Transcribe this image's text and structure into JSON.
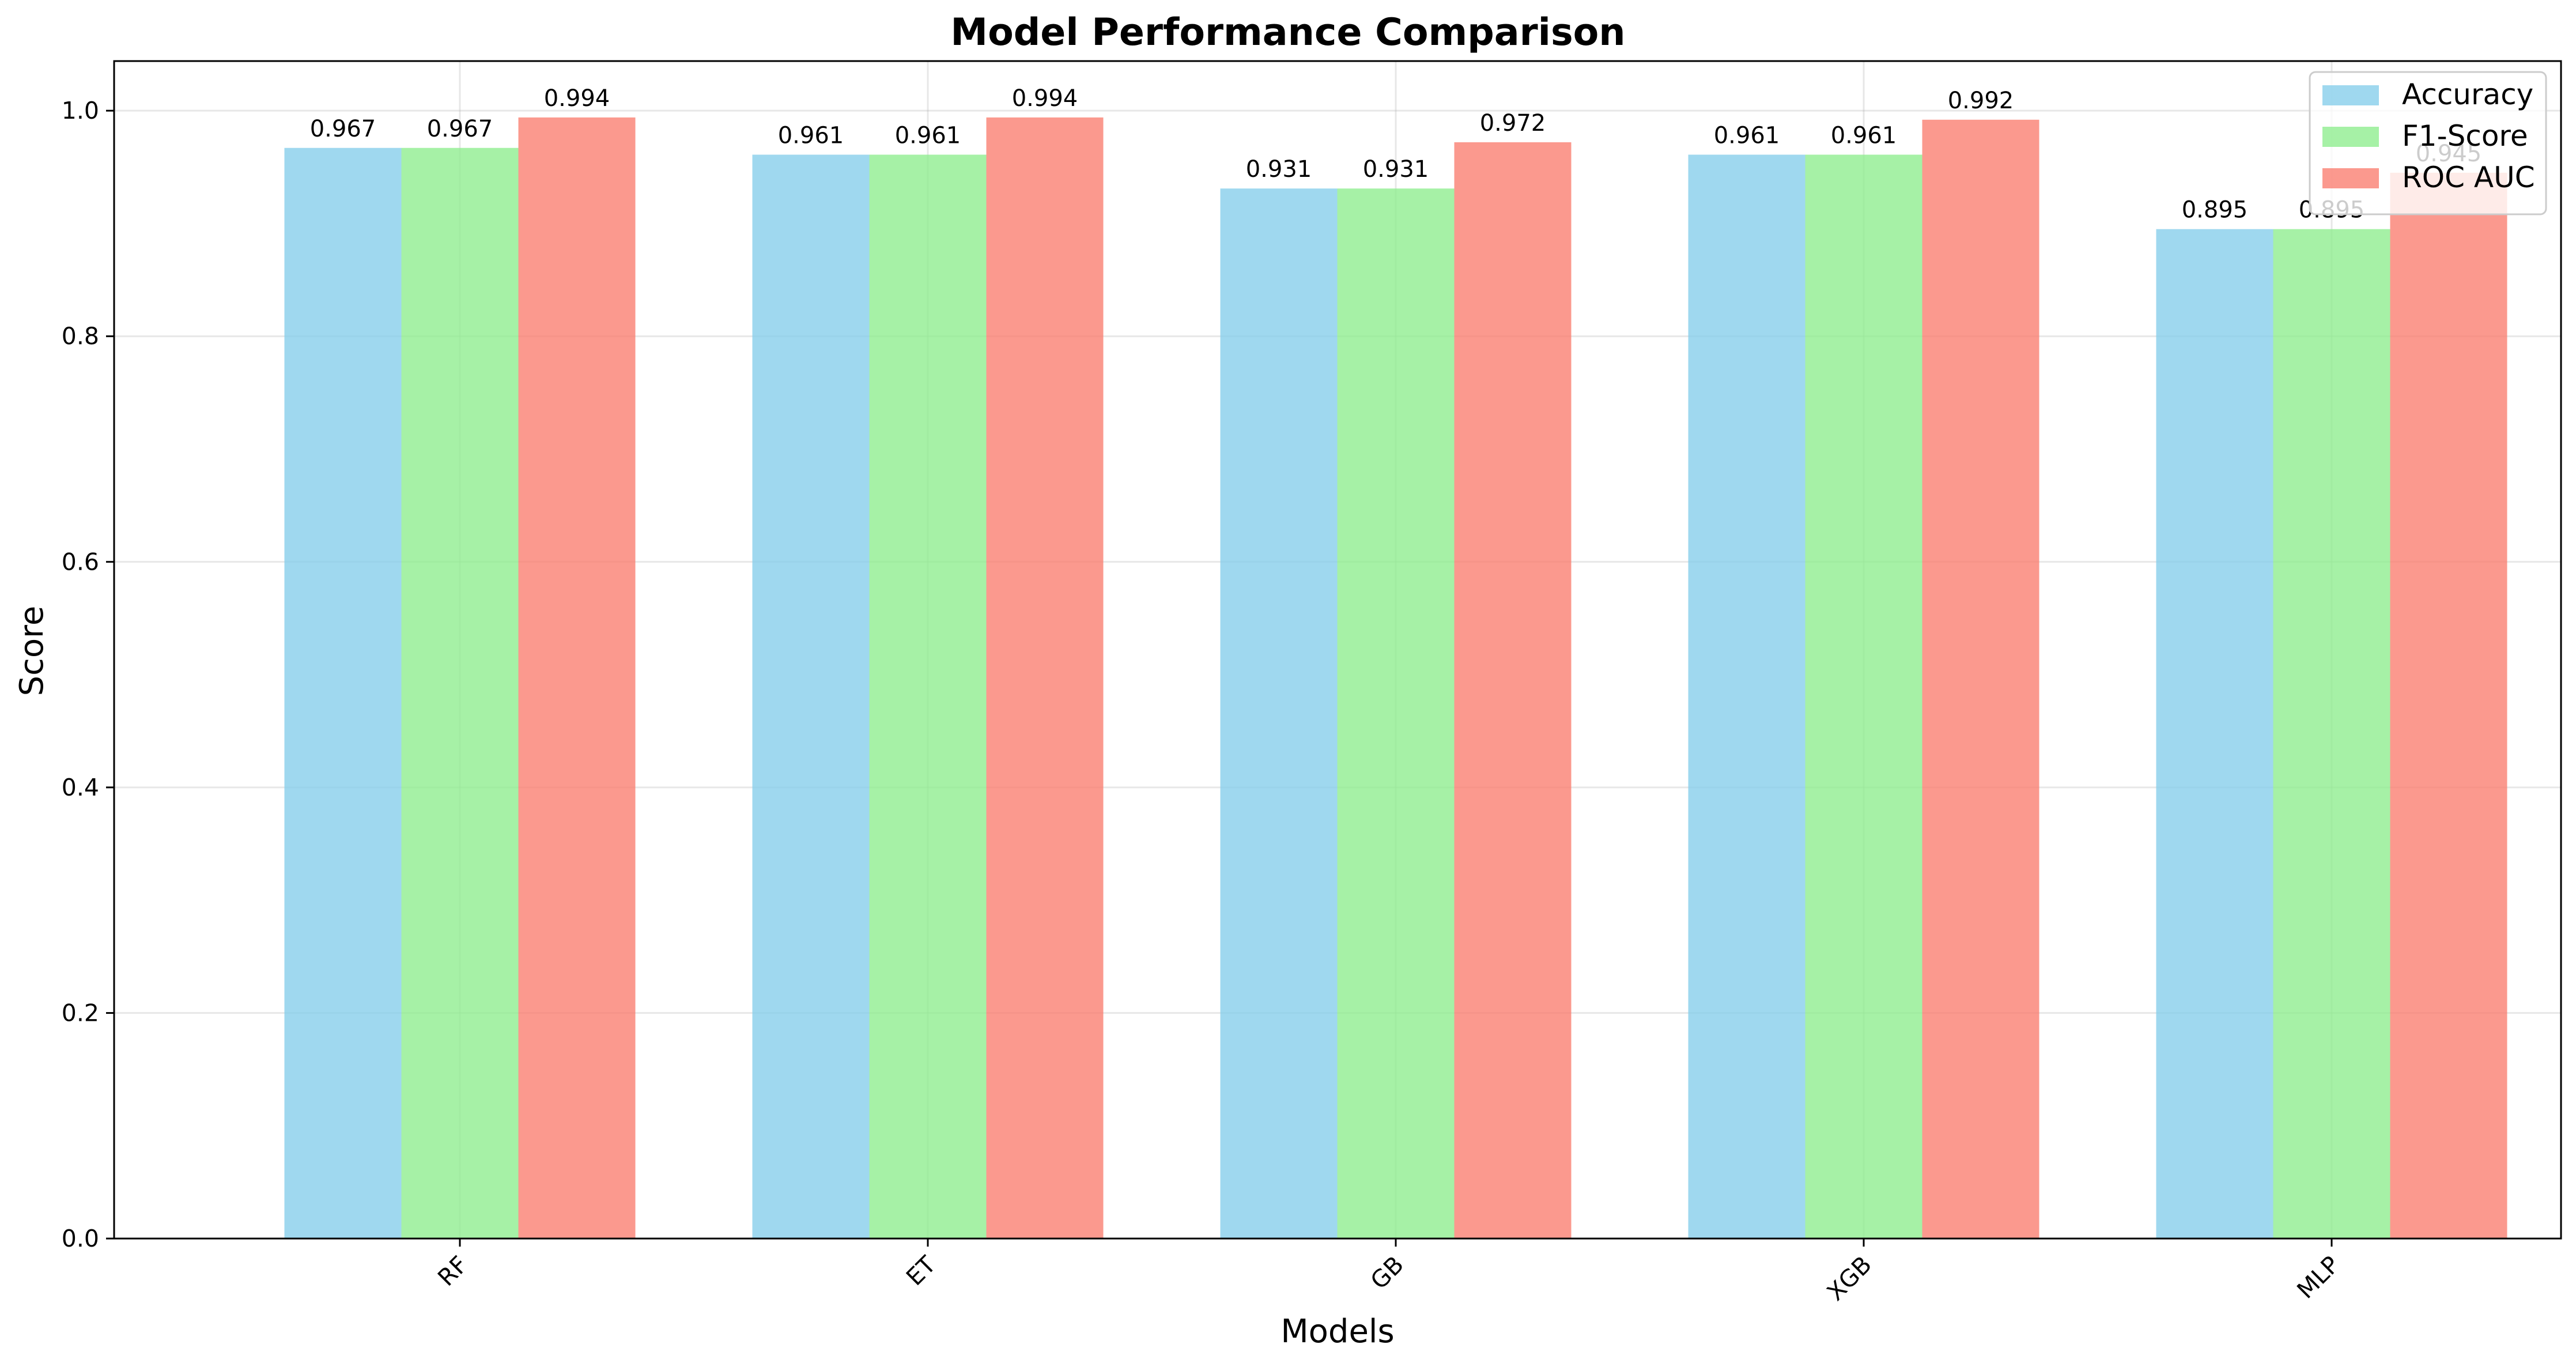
{
  "chart_data": {
    "type": "bar",
    "title": "Model Performance Comparison",
    "xlabel": "Models",
    "ylabel": "Score",
    "categories": [
      "RF",
      "ET",
      "GB",
      "XGB",
      "MLP"
    ],
    "series": [
      {
        "name": "Accuracy",
        "color": "#87CEEB",
        "values": [
          0.967,
          0.961,
          0.931,
          0.961,
          0.895
        ],
        "labels": [
          "0.967",
          "0.961",
          "0.931",
          "0.961",
          "0.895"
        ]
      },
      {
        "name": "F1-Score",
        "color": "#90EE90",
        "values": [
          0.967,
          0.961,
          0.931,
          0.961,
          0.895
        ],
        "labels": [
          "0.967",
          "0.961",
          "0.931",
          "0.961",
          "0.895"
        ]
      },
      {
        "name": "ROC AUC",
        "color": "#FA8072",
        "values": [
          0.994,
          0.994,
          0.972,
          0.992,
          0.945
        ],
        "labels": [
          "0.994",
          "0.994",
          "0.972",
          "0.992",
          "0.945"
        ]
      }
    ],
    "ylim": [
      0.0,
      1.044
    ],
    "yticks": [
      0.0,
      0.2,
      0.4,
      0.6,
      0.8,
      1.0
    ],
    "ytick_labels": [
      "0.0",
      "0.2",
      "0.4",
      "0.6",
      "0.8",
      "1.0"
    ],
    "grid": true,
    "legend_position": "top-right",
    "bar_alpha": 0.8
  }
}
